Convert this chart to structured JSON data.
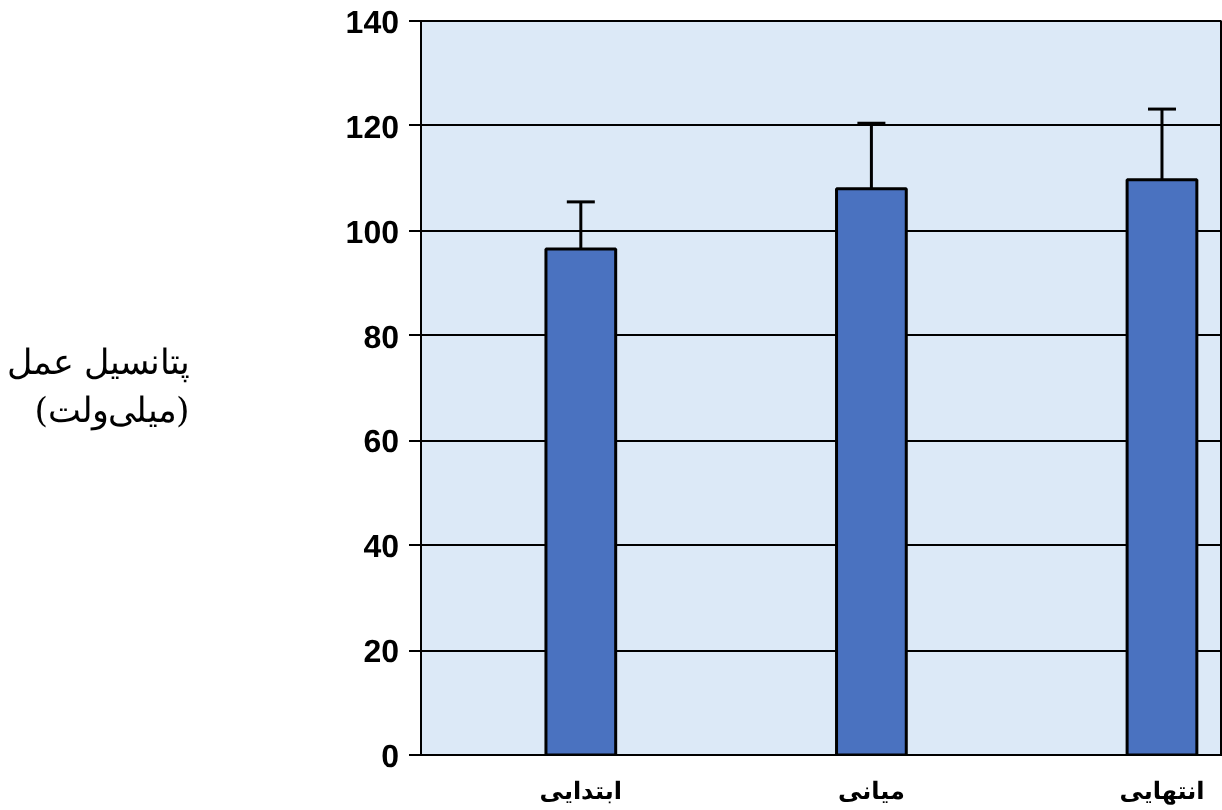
{
  "chart_data": {
    "type": "bar",
    "ylabel": "پتانسیل عمل\n(میلی‌ولت)",
    "categories": [
      "ابتدایی",
      "میانی",
      "انتهایی"
    ],
    "values": [
      96.5,
      108,
      109.7
    ],
    "errors": [
      9,
      12.5,
      13.5
    ],
    "color": "#4a72c0",
    "ylim": [
      0,
      140
    ],
    "yticks": [
      0,
      20,
      40,
      60,
      80,
      100,
      120,
      140
    ],
    "grid": "y"
  }
}
